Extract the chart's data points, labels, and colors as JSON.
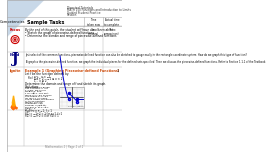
{
  "title_line1": "Directed Tutorials",
  "title_line2": "MATH 150 Functions and Introduction to Limits",
  "title_line3": "Guided Student Practice",
  "title_line4": "Session",
  "header_center": "Sample Tasks",
  "header_col1": "Time\ntaken now\n(in\nminutes)",
  "header_col2": "Actual time\nto complete\n(for\ncomparison)",
  "col_competencies": "Competencies",
  "focus_label": "Focus",
  "need_label": "Need",
  "ignite_label": "Ignite",
  "focus_text1": "By the end of this guide, the student will have done/been able to:",
  "focus_bullets": [
    "Sketch the graph of piecewise-defined functions",
    "Determine the domain and range of piecewise-defined functions"
  ],
  "need_text": "Just select of the common functions, piecewise-defined function can also be sketched to gauge easily in the rectangle coordinate system. How do we graph this type of function?",
  "need_text2": "To graph a the piecewise-defined function, we graph the individual pieces for the defined sets specified. Then we discuss the piecewise-defined functions. Refer to Section 1.1.1 of the Textbook.",
  "ignite_label2": "Example 1 (Graphing Piecewise-defined Functions)",
  "ignite_score": "1",
  "example_text": "Let f be the function defined by:",
  "task": "Determine the domain and range of f and sketch its graph.",
  "solution_label": "Solution",
  "footer": "Mathematics 1 | Page 1 of 1",
  "bg_color": "#ffffff",
  "border_color": "#000000",
  "focus_icon_color": "#cc0000",
  "need_icon_color": "#000080",
  "ignite_icon_color": "#cc4400",
  "triangle_color": "#c8d8e8"
}
